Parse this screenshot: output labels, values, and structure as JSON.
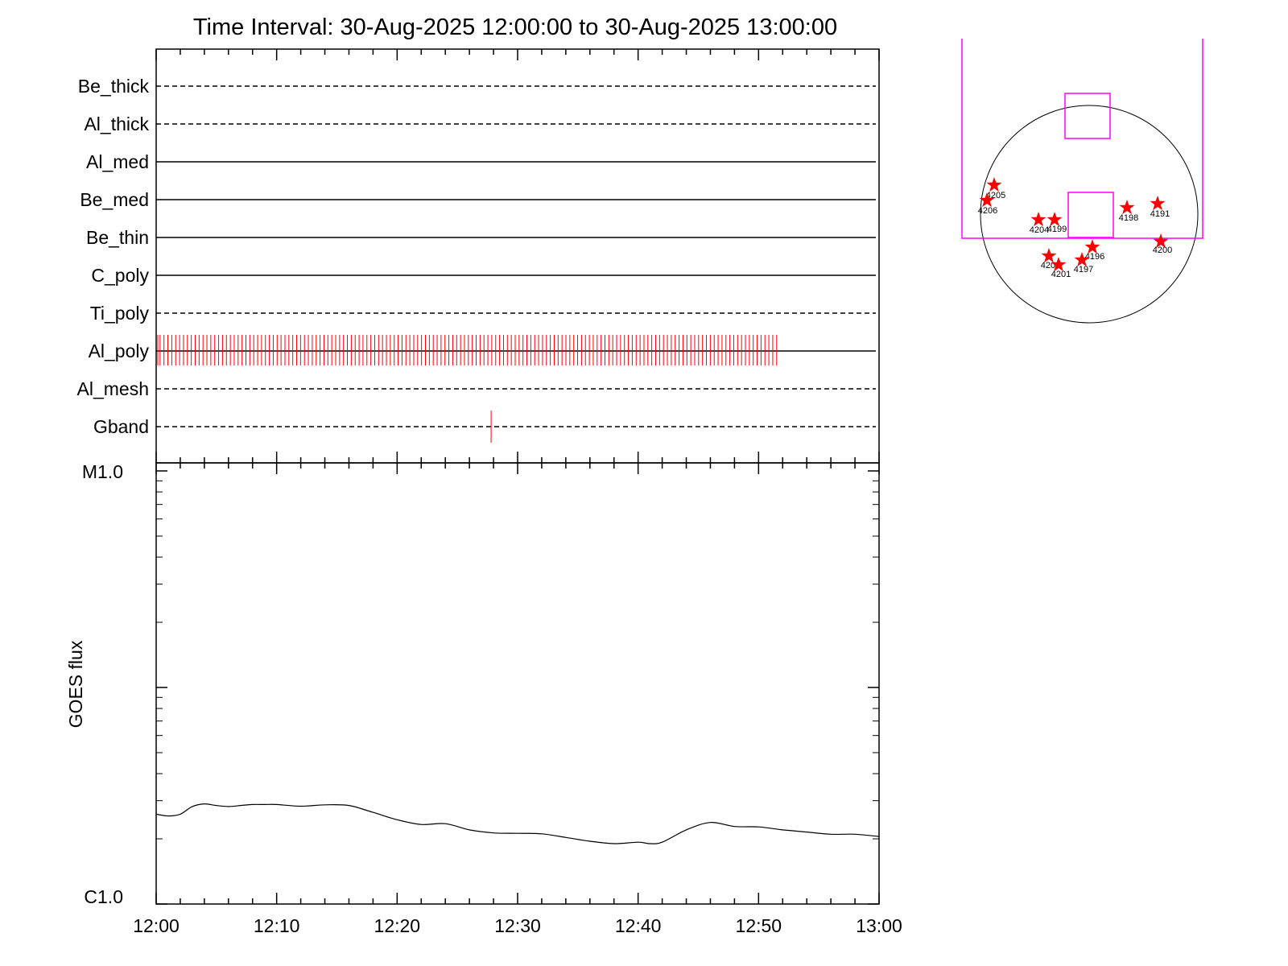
{
  "chart_data": [
    {
      "type": "event-timeline",
      "title": "Time Interval: 30-Aug-2025 12:00:00 to 30-Aug-2025 13:00:00",
      "x_range": [
        "12:00",
        "13:00"
      ],
      "rows": [
        {
          "name": "Be_thick",
          "line": "dashed",
          "events": []
        },
        {
          "name": "Al_thick",
          "line": "dashed",
          "events": []
        },
        {
          "name": "Al_med",
          "line": "solid",
          "events": []
        },
        {
          "name": "Be_med",
          "line": "solid",
          "events": []
        },
        {
          "name": "Be_thin",
          "line": "solid",
          "events": []
        },
        {
          "name": "C_poly",
          "line": "solid",
          "events": []
        },
        {
          "name": "Ti_poly",
          "line": "dashed",
          "events": []
        },
        {
          "name": "Al_poly",
          "line": "solid",
          "events": [],
          "event_span": [
            "12:00",
            "12:51.5"
          ],
          "event_count": 160
        },
        {
          "name": "Al_mesh",
          "line": "dashed",
          "events": []
        },
        {
          "name": "Gband",
          "line": "dashed",
          "events": [
            "12:27.8"
          ]
        }
      ],
      "event_color": "#ff0000"
    },
    {
      "type": "line",
      "ylabel": "GOES flux",
      "yscale": "log",
      "ytick_labels": [
        "M1.0",
        "C1.0"
      ],
      "ylim_labels": [
        "C1.0",
        "M1.0"
      ],
      "x_tick_labels": [
        "12:00",
        "12:10",
        "12:20",
        "12:30",
        "12:40",
        "12:50",
        "13:00"
      ],
      "x_minutes": [
        0,
        1,
        2,
        3,
        4,
        5,
        6,
        7,
        8,
        9,
        10,
        12,
        14,
        16,
        18,
        20,
        22,
        24,
        26,
        28,
        30,
        32,
        34,
        36,
        38,
        40,
        41,
        42,
        44,
        46,
        48,
        50,
        52,
        54,
        56,
        58,
        60
      ],
      "series": [
        {
          "values": [
            2.6,
            2.55,
            2.6,
            2.82,
            2.9,
            2.85,
            2.82,
            2.85,
            2.88,
            2.88,
            2.88,
            2.83,
            2.87,
            2.85,
            2.65,
            2.45,
            2.33,
            2.35,
            2.2,
            2.13,
            2.12,
            2.11,
            2.03,
            1.95,
            1.9,
            1.93,
            1.9,
            1.93,
            2.2,
            2.38,
            2.28,
            2.27,
            2.2,
            2.15,
            2.1,
            2.1,
            2.05
          ]
        }
      ]
    },
    {
      "type": "scatter",
      "description_labels": [
        "4191",
        "4196",
        "4197",
        "4198",
        "4199",
        "4200",
        "4201",
        "4202",
        "4204",
        "4205",
        "4206"
      ],
      "points": [
        {
          "label": "4205",
          "color": "#ff0000"
        },
        {
          "label": "4206",
          "color": "#ff0000"
        },
        {
          "label": "4204",
          "color": "#ff0000"
        },
        {
          "label": "4199",
          "color": "#ff0000"
        },
        {
          "label": "4198",
          "color": "#ff0000"
        },
        {
          "label": "4191",
          "color": "#ff0000"
        },
        {
          "label": "4200",
          "color": "#ff0000"
        },
        {
          "label": "4196",
          "color": "#ff0000"
        },
        {
          "label": "4197",
          "color": "#ff0000"
        },
        {
          "label": "4202",
          "color": "#ff0000"
        },
        {
          "label": "4201",
          "color": "#ff0000"
        }
      ],
      "fov_color": "#ff00ff"
    }
  ]
}
